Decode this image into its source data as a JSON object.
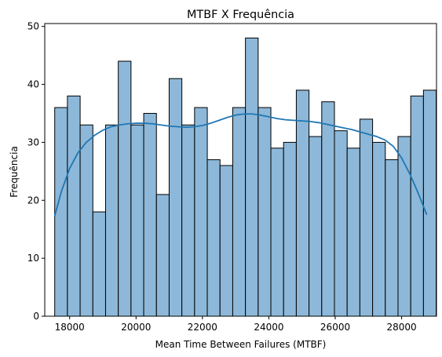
{
  "chart_data": {
    "type": "bar",
    "title": "MTBF X Frequência",
    "xlabel": "Mean Time Between Failures (MTBF)",
    "ylabel": "Frequência",
    "xlim": [
      17250,
      29050
    ],
    "ylim": [
      0,
      50.5
    ],
    "grid": false,
    "legend": "none",
    "bin_start": 17550,
    "bin_width": 383,
    "values": [
      36,
      38,
      33,
      18,
      33,
      44,
      33,
      35,
      21,
      41,
      33,
      36,
      27,
      26,
      36,
      48,
      36,
      29,
      30,
      39,
      31,
      37,
      32,
      29,
      34,
      30,
      27,
      31,
      38,
      39
    ],
    "x_ticks": [
      18000,
      20000,
      22000,
      24000,
      26000,
      28000
    ],
    "y_ticks": [
      0,
      10,
      20,
      30,
      40,
      50
    ],
    "kde": {
      "x": [
        17550,
        17750,
        18000,
        18250,
        18500,
        18750,
        19000,
        19250,
        19500,
        19750,
        20000,
        20250,
        20500,
        20750,
        21000,
        21250,
        21500,
        21750,
        22000,
        22250,
        22500,
        22750,
        23000,
        23250,
        23500,
        23750,
        24000,
        24250,
        24500,
        24750,
        25000,
        25250,
        25500,
        25750,
        26000,
        26250,
        26500,
        26750,
        27000,
        27250,
        27500,
        27750,
        28000,
        28250,
        28500,
        28750
      ],
      "y": [
        17.3,
        21.5,
        25.5,
        28.2,
        30.0,
        31.2,
        32.1,
        32.7,
        33.0,
        33.2,
        33.3,
        33.3,
        33.2,
        33.0,
        32.8,
        32.7,
        32.6,
        32.7,
        32.9,
        33.3,
        33.8,
        34.3,
        34.7,
        34.9,
        34.9,
        34.7,
        34.4,
        34.1,
        33.9,
        33.8,
        33.7,
        33.6,
        33.4,
        33.1,
        32.8,
        32.5,
        32.2,
        31.8,
        31.4,
        31.0,
        30.4,
        29.3,
        27.3,
        24.5,
        21.2,
        17.6
      ]
    },
    "colors": {
      "bar_fill": "#8db8d9",
      "bar_edge": "#000000",
      "kde_line": "#1f77b4"
    }
  }
}
